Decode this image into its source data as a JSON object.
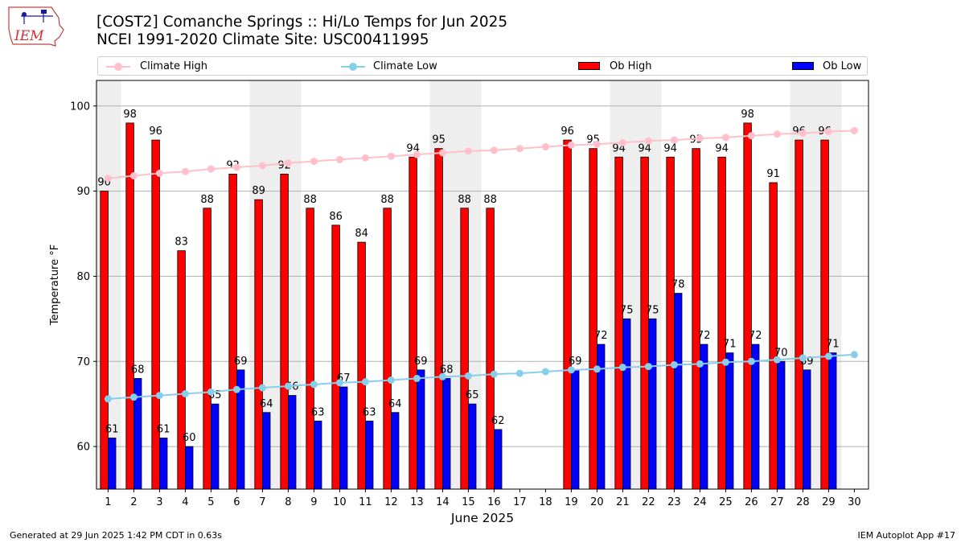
{
  "header": {
    "title_line1": "[COST2] Comanche Springs :: Hi/Lo Temps for Jun 2025",
    "title_line2": "NCEI 1991-2020 Climate Site: USC00411995"
  },
  "logo": {
    "text": "IEM"
  },
  "footer": {
    "generated": "Generated at 29 Jun 2025 1:42 PM CDT in 0.63s",
    "app": "IEM Autoplot App #17"
  },
  "legend": {
    "climate_high": "Climate High",
    "climate_low": "Climate Low",
    "ob_high": "Ob High",
    "ob_low": "Ob Low"
  },
  "colors": {
    "climate_high": "#ffc0cb",
    "climate_low": "#87ceeb",
    "ob_high": "#ff0000",
    "ob_low": "#0000ff",
    "weekend_band": "#eeeeee",
    "grid": "#b0b0b0"
  },
  "chart_data": {
    "type": "bar",
    "title": "[COST2] Comanche Springs :: Hi/Lo Temps for Jun 2025",
    "xlabel": "June 2025",
    "ylabel": "Temperature °F",
    "ylim": [
      55,
      103
    ],
    "yticks": [
      60,
      70,
      80,
      90,
      100
    ],
    "grid": "horizontal",
    "legend_position": "top",
    "categories": [
      1,
      2,
      3,
      4,
      5,
      6,
      7,
      8,
      9,
      10,
      11,
      12,
      13,
      14,
      15,
      16,
      17,
      18,
      19,
      20,
      21,
      22,
      23,
      24,
      25,
      26,
      27,
      28,
      29,
      30
    ],
    "weekend_days": [
      1,
      7,
      8,
      14,
      15,
      21,
      22,
      28,
      29
    ],
    "series": [
      {
        "name": "Ob High",
        "kind": "bar",
        "values": [
          90,
          98,
          96,
          83,
          88,
          92,
          89,
          92,
          88,
          86,
          84,
          88,
          94,
          95,
          88,
          88,
          null,
          null,
          96,
          95,
          94,
          94,
          94,
          95,
          94,
          98,
          91,
          96,
          96,
          null
        ]
      },
      {
        "name": "Ob Low",
        "kind": "bar",
        "values": [
          61,
          68,
          61,
          60,
          65,
          69,
          64,
          66,
          63,
          67,
          63,
          64,
          69,
          68,
          65,
          62,
          null,
          null,
          69,
          72,
          75,
          75,
          78,
          72,
          71,
          72,
          70,
          69,
          71,
          null
        ]
      },
      {
        "name": "Climate High",
        "kind": "line",
        "values": [
          91.5,
          91.8,
          92.1,
          92.3,
          92.6,
          92.8,
          93.0,
          93.3,
          93.5,
          93.7,
          93.9,
          94.1,
          94.3,
          94.5,
          94.7,
          94.8,
          95.0,
          95.2,
          95.4,
          95.5,
          95.7,
          95.9,
          96.0,
          96.2,
          96.3,
          96.5,
          96.7,
          96.8,
          97.0,
          97.1
        ]
      },
      {
        "name": "Climate Low",
        "kind": "line",
        "values": [
          65.6,
          65.8,
          66.0,
          66.2,
          66.4,
          66.7,
          66.9,
          67.1,
          67.3,
          67.5,
          67.6,
          67.8,
          68.0,
          68.2,
          68.3,
          68.5,
          68.6,
          68.8,
          69.0,
          69.1,
          69.3,
          69.4,
          69.6,
          69.7,
          69.9,
          70.0,
          70.2,
          70.4,
          70.6,
          70.8
        ]
      }
    ]
  }
}
